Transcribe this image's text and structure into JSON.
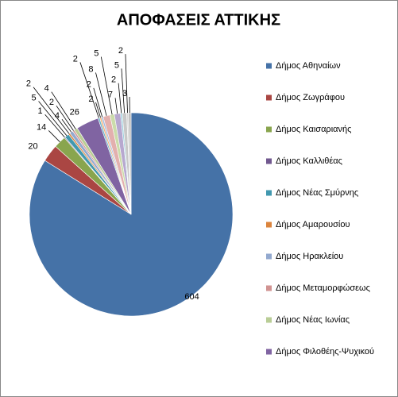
{
  "chart_data": {
    "type": "pie",
    "title": "ΑΠΟΦΑΣΕΙΣ ΑΤΤΙΚΗΣ",
    "categories": [
      "Δήμος Αθηναίων",
      "Δήμος Ζωγράφου",
      "Δήμος Καισαριανής",
      "Δήμος Καλλιθέας",
      "Δήμος Νέας Σμύρνης",
      "Δήμος Αμαρουσίου",
      "Δήμος Ηρακλείου",
      "Δήμος Μεταμορφώσεως",
      "Δήμος Νέας Ιωνίας",
      "Δήμος Φιλοθέης-Ψυχικού",
      null,
      null,
      null,
      null,
      null,
      null,
      null,
      null,
      null,
      null
    ],
    "values": [
      604,
      20,
      14,
      1,
      5,
      2,
      4,
      2,
      4,
      26,
      2,
      2,
      2,
      8,
      5,
      7,
      2,
      5,
      2,
      3
    ],
    "colors": [
      "#4572a7",
      "#aa4643",
      "#89a54e",
      "#71588f",
      "#4198af",
      "#db843d",
      "#93a9cf",
      "#d19392",
      "#b9cd96",
      "#8064a2",
      "#6fb7cc",
      "#f2b27a",
      "#a6bde0",
      "#e3b0ae",
      "#cbdcaa",
      "#b7a8cf",
      "#9fd0de",
      "#c8c8c8",
      "#d9d9d9",
      "#bfbfbf"
    ],
    "legend": "right"
  }
}
